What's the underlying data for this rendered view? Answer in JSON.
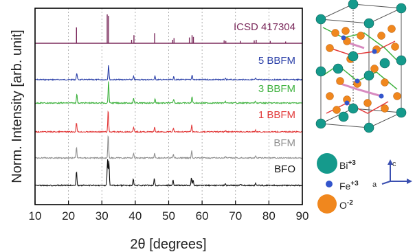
{
  "chart_data": {
    "type": "line",
    "xlabel": "2θ [degrees]",
    "ylabel": "Norm. Intensity [arb. unit]",
    "xlim": [
      10,
      90
    ],
    "x_ticks": [
      "10",
      "20",
      "30",
      "40",
      "50",
      "60",
      "70",
      "80",
      "90"
    ],
    "grid": "vertical dotted",
    "reference": {
      "name": "ICSD 417304",
      "color": "#7b2a5c",
      "peaks": [
        {
          "x": 22.4,
          "h": 0.55
        },
        {
          "x": 31.6,
          "h": 1.0
        },
        {
          "x": 32.0,
          "h": 0.95
        },
        {
          "x": 38.9,
          "h": 0.12
        },
        {
          "x": 39.6,
          "h": 0.28
        },
        {
          "x": 45.8,
          "h": 0.35
        },
        {
          "x": 51.2,
          "h": 0.12
        },
        {
          "x": 51.6,
          "h": 0.18
        },
        {
          "x": 56.2,
          "h": 0.2
        },
        {
          "x": 57.0,
          "h": 0.28
        },
        {
          "x": 57.4,
          "h": 0.22
        },
        {
          "x": 66.6,
          "h": 0.1
        },
        {
          "x": 67.1,
          "h": 0.08
        },
        {
          "x": 71.5,
          "h": 0.08
        },
        {
          "x": 75.6,
          "h": 0.1
        },
        {
          "x": 76.2,
          "h": 0.12
        },
        {
          "x": 80.4,
          "h": 0.08
        },
        {
          "x": 85.0,
          "h": 0.06
        }
      ]
    },
    "series": [
      {
        "name": "5 BBFM",
        "color": "#2a3fa8",
        "peaks": [
          {
            "x": 22.5,
            "h": 0.45
          },
          {
            "x": 32.0,
            "h": 1.0
          },
          {
            "x": 39.5,
            "h": 0.2
          },
          {
            "x": 45.9,
            "h": 0.22
          },
          {
            "x": 51.5,
            "h": 0.18
          },
          {
            "x": 57.0,
            "h": 0.32
          },
          {
            "x": 67.0,
            "h": 0.06
          },
          {
            "x": 76.0,
            "h": 0.08
          }
        ]
      },
      {
        "name": "3 BBFM",
        "color": "#3fb23f",
        "peaks": [
          {
            "x": 22.5,
            "h": 0.42
          },
          {
            "x": 32.0,
            "h": 1.0
          },
          {
            "x": 39.5,
            "h": 0.2
          },
          {
            "x": 45.9,
            "h": 0.2
          },
          {
            "x": 51.5,
            "h": 0.18
          },
          {
            "x": 57.0,
            "h": 0.3
          },
          {
            "x": 67.0,
            "h": 0.06
          },
          {
            "x": 76.0,
            "h": 0.08
          }
        ]
      },
      {
        "name": "1 BBFM",
        "color": "#e23a3a",
        "peaks": [
          {
            "x": 22.4,
            "h": 0.45
          },
          {
            "x": 31.9,
            "h": 1.0
          },
          {
            "x": 39.5,
            "h": 0.2
          },
          {
            "x": 45.8,
            "h": 0.2
          },
          {
            "x": 51.4,
            "h": 0.16
          },
          {
            "x": 56.9,
            "h": 0.3
          },
          {
            "x": 67.0,
            "h": 0.06
          },
          {
            "x": 76.0,
            "h": 0.08
          }
        ]
      },
      {
        "name": "BFM",
        "color": "#8f8f8f",
        "peaks": [
          {
            "x": 22.4,
            "h": 0.45
          },
          {
            "x": 31.9,
            "h": 1.0
          },
          {
            "x": 39.5,
            "h": 0.2
          },
          {
            "x": 45.8,
            "h": 0.2
          },
          {
            "x": 51.4,
            "h": 0.16
          },
          {
            "x": 56.9,
            "h": 0.3
          },
          {
            "x": 67.0,
            "h": 0.06
          },
          {
            "x": 76.0,
            "h": 0.08
          }
        ]
      },
      {
        "name": "BFO",
        "color": "#111111",
        "peaks": [
          {
            "x": 22.4,
            "h": 0.55
          },
          {
            "x": 31.7,
            "h": 1.0
          },
          {
            "x": 32.1,
            "h": 0.95
          },
          {
            "x": 39.4,
            "h": 0.25
          },
          {
            "x": 45.7,
            "h": 0.28
          },
          {
            "x": 51.3,
            "h": 0.2
          },
          {
            "x": 56.8,
            "h": 0.3
          },
          {
            "x": 57.3,
            "h": 0.2
          },
          {
            "x": 67.0,
            "h": 0.06
          },
          {
            "x": 71.5,
            "h": 0.05
          },
          {
            "x": 76.0,
            "h": 0.08
          }
        ]
      }
    ]
  },
  "structure_legend": {
    "atoms": [
      {
        "symbol": "Bi",
        "charge": "+3",
        "color": "#159a8c"
      },
      {
        "symbol": "Fe",
        "charge": "+3",
        "color": "#3355cc"
      },
      {
        "symbol": "O",
        "charge": "-2",
        "color": "#f0871e"
      }
    ],
    "axes": {
      "c": "c",
      "a": "a",
      "color": "#3a4fb0"
    }
  }
}
